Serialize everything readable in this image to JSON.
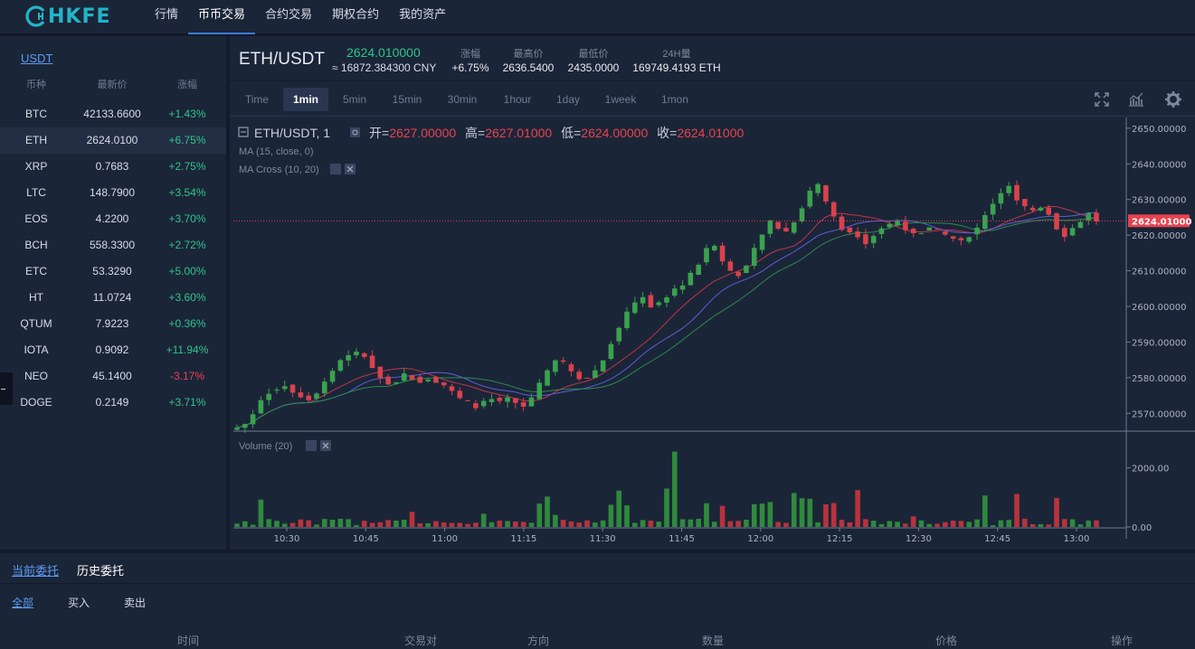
{
  "brand": {
    "name": "HKFE"
  },
  "nav": {
    "items": [
      {
        "label": "行情"
      },
      {
        "label": "币币交易",
        "active": true
      },
      {
        "label": "合约交易"
      },
      {
        "label": "期权合约"
      },
      {
        "label": "我的资产"
      }
    ]
  },
  "market": {
    "quote_tab": "USDT",
    "headers": {
      "coin": "币种",
      "last": "最新价",
      "change": "涨幅"
    },
    "rows": [
      {
        "coin": "BTC",
        "price": "42133.6600",
        "change": "+1.43%",
        "dir": "up"
      },
      {
        "coin": "ETH",
        "price": "2624.0100",
        "change": "+6.75%",
        "dir": "up"
      },
      {
        "coin": "XRP",
        "price": "0.7683",
        "change": "+2.75%",
        "dir": "up"
      },
      {
        "coin": "LTC",
        "price": "148.7900",
        "change": "+3.54%",
        "dir": "up"
      },
      {
        "coin": "EOS",
        "price": "4.2200",
        "change": "+3.70%",
        "dir": "up"
      },
      {
        "coin": "BCH",
        "price": "558.3300",
        "change": "+2.72%",
        "dir": "up"
      },
      {
        "coin": "ETC",
        "price": "53.3290",
        "change": "+5.00%",
        "dir": "up"
      },
      {
        "coin": "HT",
        "price": "11.0724",
        "change": "+3.60%",
        "dir": "up"
      },
      {
        "coin": "QTUM",
        "price": "7.9223",
        "change": "+0.36%",
        "dir": "up"
      },
      {
        "coin": "IOTA",
        "price": "0.9092",
        "change": "+11.94%",
        "dir": "up"
      },
      {
        "coin": "NEO",
        "price": "45.1400",
        "change": "-3.17%",
        "dir": "down"
      },
      {
        "coin": "DOGE",
        "price": "0.2149",
        "change": "+3.71%",
        "dir": "up"
      }
    ]
  },
  "ticker": {
    "pair": "ETH/USDT",
    "price": "2624.010000",
    "cny": "≈ 16872.384300 CNY",
    "stats": [
      {
        "label": "涨幅",
        "value": "+6.75%",
        "dir": "up"
      },
      {
        "label": "最高价",
        "value": "2636.5400"
      },
      {
        "label": "最低价",
        "value": "2435.0000"
      },
      {
        "label": "24H量",
        "value": "169749.4193 ETH"
      }
    ]
  },
  "intervals": [
    "Time",
    "1min",
    "5min",
    "15min",
    "30min",
    "1hour",
    "1day",
    "1week",
    "1mon"
  ],
  "active_interval": "1min",
  "chart_legend": {
    "symbol": "ETH/USDT, 1",
    "open_label": "开=",
    "open": "2627.00000",
    "high_label": "高=",
    "high": "2627.01000",
    "low_label": "低=",
    "low": "2624.00000",
    "close_label": "收=",
    "close": "2624.01000",
    "ma": "MA (15, close, 0)",
    "ma_cross": "MA Cross (10, 20)",
    "volume": "Volume (20)"
  },
  "chart_data": {
    "type": "candlestick",
    "x_ticks": [
      "10:30",
      "10:45",
      "11:00",
      "11:15",
      "11:30",
      "11:45",
      "12:00",
      "12:15",
      "12:30",
      "12:45",
      "13:00"
    ],
    "y_ticks": [
      "2650.00000",
      "2640.00000",
      "2630.00000",
      "2620.00000",
      "2610.00000",
      "2600.00000",
      "2590.00000",
      "2580.00000",
      "2570.00000"
    ],
    "ylim": [
      2565,
      2653
    ],
    "last_price": 2624.01,
    "last_price_label": "2624.01000",
    "volume_ticks": [
      "2000.00",
      "0.00"
    ],
    "volume_ylim": [
      0,
      2600
    ],
    "price_path": [
      2566,
      2567,
      2570,
      2574,
      2576,
      2577,
      2578,
      2576,
      2575,
      2574,
      2576,
      2579,
      2582,
      2585,
      2586,
      2587,
      2586,
      2583,
      2580,
      2578,
      2579,
      2581,
      2580,
      2579,
      2580,
      2579,
      2578,
      2576,
      2574,
      2573,
      2572,
      2573,
      2574,
      2573,
      2574,
      2573,
      2572,
      2574,
      2578,
      2582,
      2585,
      2584,
      2582,
      2580,
      2580,
      2582,
      2585,
      2590,
      2594,
      2598,
      2601,
      2603,
      2600,
      2601,
      2603,
      2605,
      2606,
      2609,
      2612,
      2616,
      2617,
      2613,
      2610,
      2609,
      2611,
      2616,
      2620,
      2624,
      2622,
      2621,
      2624,
      2628,
      2632,
      2634,
      2629,
      2625,
      2622,
      2621,
      2620,
      2618,
      2620,
      2622,
      2623,
      2624,
      2622,
      2620,
      2621,
      2622,
      2621,
      2620,
      2619,
      2618,
      2620,
      2622,
      2626,
      2629,
      2632,
      2634,
      2630,
      2628,
      2627,
      2628,
      2626,
      2622,
      2620,
      2622,
      2624,
      2626,
      2624.01
    ]
  },
  "orders": {
    "tabs": [
      {
        "label": "当前委托",
        "active": true
      },
      {
        "label": "历史委托"
      }
    ],
    "filters": [
      {
        "label": "全部",
        "active": true
      },
      {
        "label": "买入"
      },
      {
        "label": "卖出"
      }
    ],
    "columns": [
      "时间",
      "交易对",
      "方向",
      "数量",
      "价格",
      "操作"
    ]
  }
}
